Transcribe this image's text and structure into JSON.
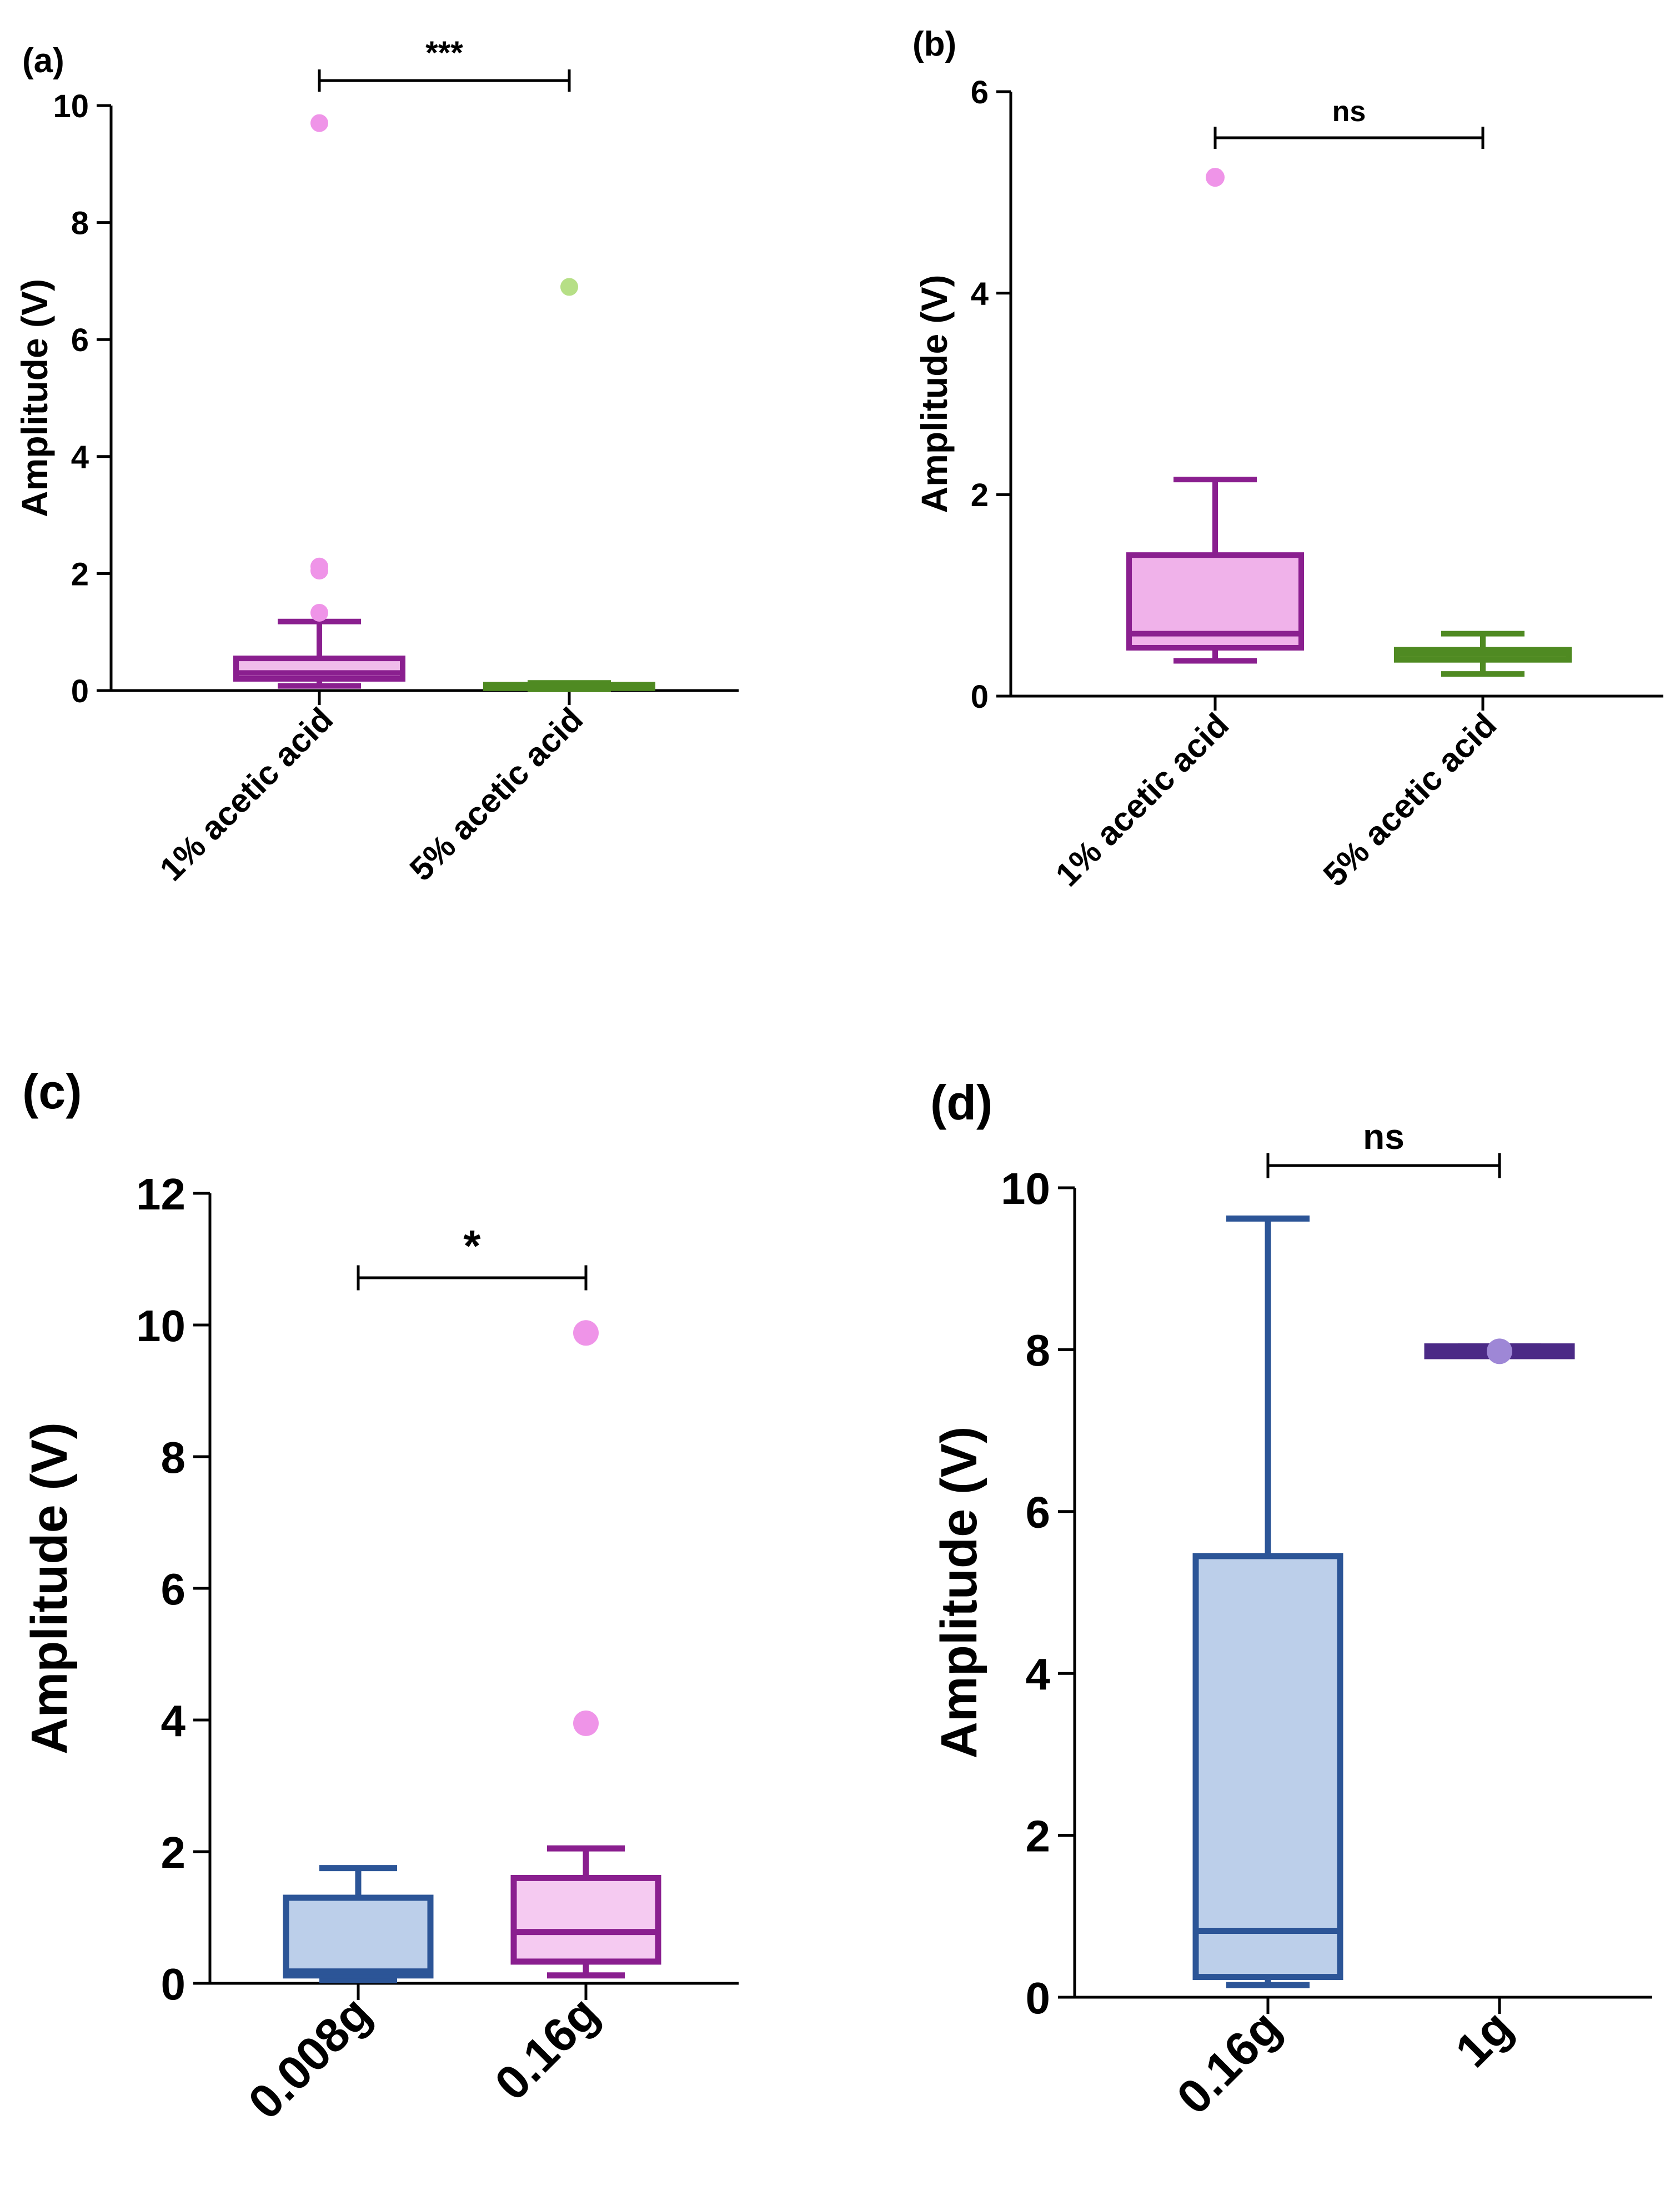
{
  "chart_data": [
    {
      "panel_label": "(a)",
      "type": "box",
      "ylabel": "Amplitude (V)",
      "ylim": [
        0,
        10
      ],
      "yticks": [
        0,
        2,
        4,
        6,
        8,
        10
      ],
      "categories": [
        "1% acetic acid",
        "5% acetic acid"
      ],
      "x_tick_rotation": -45,
      "groups": [
        {
          "name": "1% acetic acid",
          "min": 0.08,
          "q1": 0.2,
          "median": 0.3,
          "q3": 0.55,
          "max": 1.18,
          "outliers": [
            1.33,
            2.05,
            2.12,
            9.7
          ],
          "fill": "#f0bcea",
          "stroke": "#8a1f8f",
          "outlier_color": "#ef94e8"
        },
        {
          "name": "5% acetic acid",
          "min": 0.02,
          "q1": 0.04,
          "median": 0.07,
          "q3": 0.1,
          "max": 0.13,
          "outliers": [
            6.9
          ],
          "fill": "#6a9a35",
          "stroke": "#4f8a22",
          "outlier_color": "#b6df86"
        }
      ],
      "significance": {
        "label": "***",
        "between": [
          0,
          1
        ]
      }
    },
    {
      "panel_label": "(b)",
      "type": "box",
      "ylabel": "Amplitude (V)",
      "ylim": [
        0,
        6
      ],
      "yticks": [
        0,
        2,
        4,
        6
      ],
      "categories": [
        "1% acetic acid",
        "5% acetic acid"
      ],
      "x_tick_rotation": -45,
      "groups": [
        {
          "name": "1% acetic acid",
          "min": 0.35,
          "q1": 0.48,
          "median": 0.62,
          "q3": 1.4,
          "max": 2.15,
          "outliers": [
            5.15
          ],
          "fill": "#f0b2ea",
          "stroke": "#8a1f8f",
          "outlier_color": "#ef94e8"
        },
        {
          "name": "5% acetic acid",
          "min": 0.22,
          "q1": 0.36,
          "median": 0.42,
          "q3": 0.46,
          "max": 0.62,
          "outliers": [],
          "fill": "#6a9a35",
          "stroke": "#4f8a22",
          "outlier_color": "#b6df86"
        }
      ],
      "significance": {
        "label": "ns",
        "between": [
          0,
          1
        ]
      }
    },
    {
      "panel_label": "(c)",
      "type": "box",
      "ylabel": "Amplitude (V)",
      "ylim": [
        0,
        12
      ],
      "yticks": [
        0,
        2,
        4,
        6,
        8,
        10,
        12
      ],
      "categories": [
        "0.008g",
        "0.16g"
      ],
      "x_tick_rotation": -45,
      "groups": [
        {
          "name": "0.008g",
          "min": 0.05,
          "q1": 0.12,
          "median": 0.18,
          "q3": 1.3,
          "max": 1.75,
          "outliers": [],
          "fill": "#bccfea",
          "stroke": "#2c5597",
          "outlier_color": "#9fb6de"
        },
        {
          "name": "0.16g",
          "min": 0.12,
          "q1": 0.33,
          "median": 0.78,
          "q3": 1.6,
          "max": 2.05,
          "outliers": [
            3.95,
            9.88
          ],
          "fill": "#f5caf1",
          "stroke": "#8a1f8f",
          "outlier_color": "#ef94e8"
        }
      ],
      "significance": {
        "label": "*",
        "between": [
          0,
          1
        ]
      }
    },
    {
      "panel_label": "(d)",
      "type": "box",
      "ylabel": "Amplitude (V)",
      "ylim": [
        0,
        10
      ],
      "yticks": [
        0,
        2,
        4,
        6,
        8,
        10
      ],
      "categories": [
        "0.16g",
        "1g"
      ],
      "x_tick_rotation": -45,
      "groups": [
        {
          "name": "0.16g",
          "min": 0.15,
          "q1": 0.25,
          "median": 0.82,
          "q3": 5.45,
          "max": 9.62,
          "outliers": [],
          "fill": "#bccfea",
          "stroke": "#2c5597",
          "outlier_color": "#9fb6de"
        },
        {
          "name": "1g",
          "min": 7.92,
          "q1": 7.92,
          "median": 7.98,
          "q3": 8.04,
          "max": 8.04,
          "outliers": [
            7.98
          ],
          "fill": "#4b2a86",
          "stroke": "#4b2a86",
          "outlier_color": "#9e87d6"
        }
      ],
      "significance": {
        "label": "ns",
        "between": [
          0,
          1
        ]
      }
    }
  ]
}
